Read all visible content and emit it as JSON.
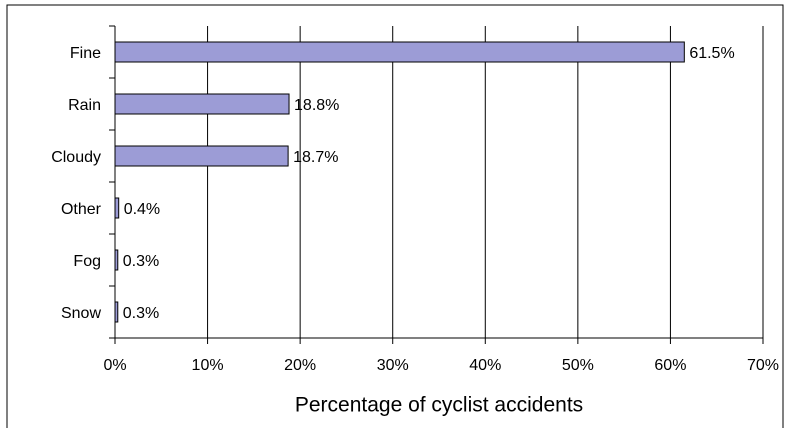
{
  "chart_data": {
    "type": "hbar",
    "categories": [
      "Fine",
      "Rain",
      "Cloudy",
      "Other",
      "Fog",
      "Snow"
    ],
    "values": [
      61.5,
      18.8,
      18.7,
      0.4,
      0.3,
      0.3
    ],
    "value_labels": [
      "61.5%",
      "18.8%",
      "18.7%",
      "0.4%",
      "0.3%",
      "0.3%"
    ],
    "color": "#9c9cd6",
    "xlabel": "Percentage of cyclist accidents",
    "xlim": [
      0,
      70
    ],
    "xticks": [
      {
        "value": 0,
        "label": "0%"
      },
      {
        "value": 10,
        "label": "10%"
      },
      {
        "value": 20,
        "label": "20%"
      },
      {
        "value": 30,
        "label": "30%"
      },
      {
        "value": 40,
        "label": "40%"
      },
      {
        "value": 50,
        "label": "50%"
      },
      {
        "value": 60,
        "label": "60%"
      },
      {
        "value": 70,
        "label": "70%"
      }
    ],
    "grid": true
  }
}
